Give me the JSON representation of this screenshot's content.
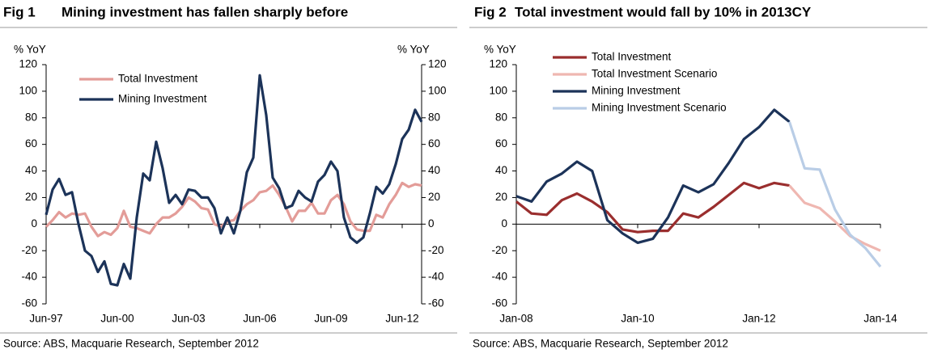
{
  "chart_data": [
    {
      "type": "line",
      "fig_label": "Fig 1",
      "title": "Mining investment has fallen sharply before",
      "ylabel": "% YoY",
      "y2label": "% YoY",
      "source": "Source: ABS, Macquarie Research, September 2012",
      "categories": [
        "Jun-97",
        null,
        null,
        null,
        null,
        null,
        null,
        null,
        null,
        null,
        null,
        "Jun-00",
        null,
        null,
        null,
        null,
        null,
        null,
        null,
        null,
        null,
        null,
        "Jun-03",
        null,
        null,
        null,
        null,
        null,
        null,
        null,
        null,
        null,
        null,
        "Jun-06",
        null,
        null,
        null,
        null,
        null,
        null,
        null,
        null,
        null,
        null,
        "Jun-09",
        null,
        null,
        null,
        null,
        null,
        null,
        null,
        null,
        null,
        null,
        "Jun-12",
        null,
        null,
        null
      ],
      "series": [
        {
          "name": "Total Investment",
          "color": "#e39c98",
          "values": [
            -2,
            3,
            9,
            5,
            8,
            7,
            8,
            -2,
            -9,
            -6,
            -8,
            -3,
            10,
            -2,
            -3,
            -5,
            -7,
            0,
            5,
            5,
            8,
            13,
            20,
            17,
            12,
            11,
            0,
            -2,
            2,
            3,
            10,
            15,
            18,
            24,
            25,
            29,
            22,
            13,
            2,
            10,
            10,
            16,
            8,
            8,
            18,
            22,
            15,
            2,
            -4,
            -5,
            -5,
            7,
            5,
            15,
            22,
            31,
            28,
            30,
            29
          ]
        },
        {
          "name": "Mining Investment",
          "color": "#1c3359",
          "values": [
            7,
            26,
            34,
            22,
            24,
            0,
            -20,
            -24,
            -36,
            -28,
            -45,
            -46,
            -30,
            -41,
            5,
            38,
            33,
            62,
            42,
            16,
            22,
            15,
            26,
            25,
            20,
            20,
            12,
            -7,
            5,
            -7,
            10,
            39,
            50,
            112,
            82,
            35,
            27,
            12,
            14,
            25,
            20,
            17,
            32,
            37,
            47,
            40,
            5,
            -10,
            -14,
            -10,
            8,
            28,
            23,
            30,
            45,
            64,
            71,
            86,
            77
          ]
        }
      ],
      "ylim": [
        -60,
        120
      ],
      "yticks": [
        -60,
        -40,
        -20,
        0,
        20,
        40,
        60,
        80,
        100,
        120
      ],
      "y2lim": [
        -60,
        120
      ],
      "y2ticks": [
        -60,
        -40,
        -20,
        0,
        20,
        40,
        60,
        80,
        100,
        120
      ],
      "legend": "upper left",
      "grid": false
    },
    {
      "type": "line",
      "fig_label": "Fig 2",
      "title": "Total investment would fall by 10% in 2013CY",
      "ylabel": "% YoY",
      "source": "Source: ABS, Macquarie Research, September 2012",
      "categories": [
        "Jan-08",
        null,
        null,
        null,
        null,
        null,
        null,
        null,
        "Jan-10",
        null,
        null,
        null,
        null,
        null,
        null,
        null,
        "Jan-12",
        null,
        null,
        null,
        null,
        null,
        null,
        null,
        "Jan-14"
      ],
      "series": [
        {
          "name": "Total Investment",
          "color": "#9a2e2e",
          "values": [
            17,
            8,
            7,
            18,
            23,
            17,
            9,
            -4,
            -6,
            -5,
            -5,
            8,
            5,
            13,
            22,
            31,
            27,
            31,
            29,
            null,
            null,
            null,
            null,
            null,
            null
          ]
        },
        {
          "name": "Total Investment Scenario",
          "color": "#efb7b1",
          "values": [
            null,
            null,
            null,
            null,
            null,
            null,
            null,
            null,
            null,
            null,
            null,
            null,
            null,
            null,
            null,
            null,
            null,
            null,
            29,
            16,
            12,
            2,
            -9,
            -15,
            -20
          ]
        },
        {
          "name": "Mining Investment",
          "color": "#1c3359",
          "values": [
            21,
            17,
            32,
            38,
            47,
            40,
            3,
            -7,
            -14,
            -11,
            5,
            29,
            24,
            30,
            46,
            64,
            73,
            86,
            77,
            null,
            null,
            null,
            null,
            null,
            null
          ]
        },
        {
          "name": "Mining Investment Scenario",
          "color": "#b9cde6",
          "values": [
            null,
            null,
            null,
            null,
            null,
            null,
            null,
            null,
            null,
            null,
            null,
            null,
            null,
            null,
            null,
            null,
            null,
            null,
            77,
            42,
            41,
            11,
            -8,
            -18,
            -32
          ]
        }
      ],
      "ylim": [
        -60,
        120
      ],
      "yticks": [
        -60,
        -40,
        -20,
        0,
        20,
        40,
        60,
        80,
        100,
        120
      ],
      "legend": "upper left",
      "grid": false
    }
  ]
}
